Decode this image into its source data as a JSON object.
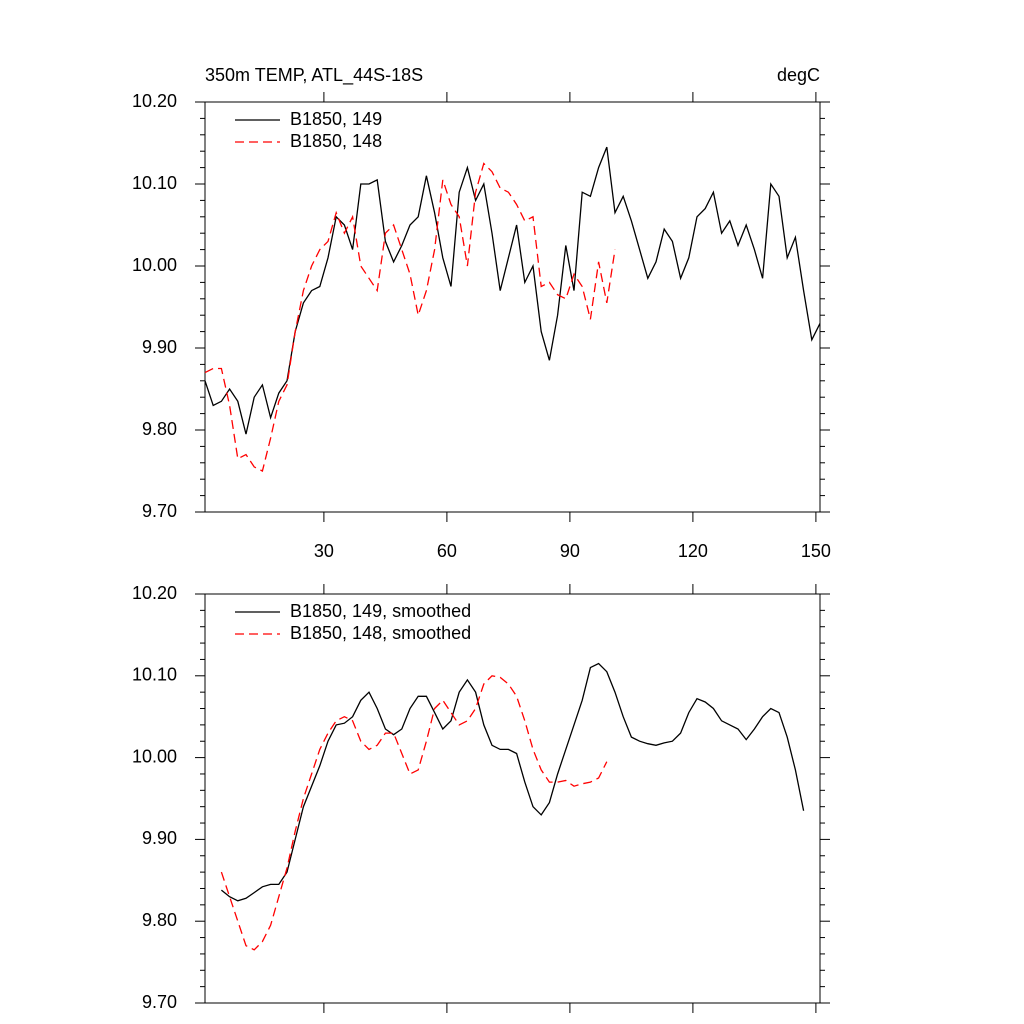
{
  "chart_data": [
    {
      "type": "line",
      "title": "350m TEMP, ATL_44S-18S",
      "unit": "degC",
      "legend": "upper left",
      "x": [
        1,
        3,
        5,
        7,
        9,
        11,
        13,
        15,
        17,
        19,
        21,
        23,
        25,
        27,
        29,
        31,
        33,
        35,
        37,
        39,
        41,
        43,
        45,
        47,
        49,
        51,
        53,
        55,
        57,
        59,
        61,
        63,
        65,
        67,
        69,
        71,
        73,
        75,
        77,
        79,
        81,
        83,
        85,
        87,
        89,
        91,
        93,
        95,
        97,
        99,
        101,
        103,
        105,
        107,
        109,
        111,
        113,
        115,
        117,
        119,
        121,
        123,
        125,
        127,
        129,
        131,
        133,
        135,
        137,
        139,
        141,
        143,
        145,
        147,
        149,
        151
      ],
      "xlim": [
        1,
        151
      ],
      "xticks": [
        30,
        60,
        90,
        120,
        150
      ],
      "ylim": [
        9.7,
        10.2
      ],
      "yticks": [
        {
          "value": 9.7,
          "label": "9.70"
        },
        {
          "value": 9.8,
          "label": "9.80"
        },
        {
          "value": 9.9,
          "label": "9.90"
        },
        {
          "value": 10.0,
          "label": "10.00"
        },
        {
          "value": 10.1,
          "label": "10.10"
        },
        {
          "value": 10.2,
          "label": "10.20"
        }
      ],
      "series": [
        {
          "name": "B1850, 149",
          "color": "#000000",
          "dashed": false,
          "values": [
            9.86,
            9.83,
            9.835,
            9.85,
            9.835,
            9.795,
            9.84,
            9.855,
            9.815,
            9.845,
            9.86,
            9.92,
            9.955,
            9.97,
            9.975,
            10.01,
            10.06,
            10.05,
            10.02,
            10.1,
            10.1,
            10.105,
            10.03,
            10.005,
            10.025,
            10.05,
            10.06,
            10.11,
            10.065,
            10.01,
            9.975,
            10.09,
            10.12,
            10.08,
            10.1,
            10.04,
            9.97,
            10.01,
            10.05,
            9.98,
            10.0,
            9.92,
            9.885,
            9.94,
            10.025,
            9.97,
            10.09,
            10.085,
            10.12,
            10.145,
            10.065,
            10.085,
            10.055,
            10.02,
            9.985,
            10.005,
            10.045,
            10.03,
            9.985,
            10.01,
            10.06,
            10.07,
            10.09,
            10.04,
            10.055,
            10.025,
            10.05,
            10.02,
            9.985,
            10.1,
            10.085,
            10.01,
            10.035,
            9.97,
            9.91,
            9.93
          ]
        },
        {
          "name": "B1850, 148",
          "color": "#ff0000",
          "dashed": true,
          "values": [
            9.87,
            9.875,
            9.875,
            9.83,
            9.765,
            9.77,
            9.755,
            9.75,
            9.79,
            9.835,
            9.855,
            9.92,
            9.97,
            10.0,
            10.02,
            10.03,
            10.065,
            10.04,
            10.06,
            10.0,
            9.985,
            9.97,
            10.04,
            10.05,
            10.02,
            9.99,
            9.94,
            9.97,
            10.02,
            10.105,
            10.075,
            10.06,
            10.0,
            10.09,
            10.125,
            10.115,
            10.095,
            10.09,
            10.075,
            10.055,
            10.06,
            9.975,
            9.98,
            9.965,
            9.96,
            9.99,
            9.975,
            9.935,
            10.005,
            9.955,
            10.02,
            null,
            null,
            null,
            null,
            null,
            null,
            null,
            null,
            null,
            null,
            null,
            null,
            null,
            null,
            null,
            null,
            null,
            null,
            null,
            null,
            null,
            null,
            null,
            null,
            null
          ]
        }
      ]
    },
    {
      "type": "line",
      "legend": "upper left",
      "x": [
        1,
        3,
        5,
        7,
        9,
        11,
        13,
        15,
        17,
        19,
        21,
        23,
        25,
        27,
        29,
        31,
        33,
        35,
        37,
        39,
        41,
        43,
        45,
        47,
        49,
        51,
        53,
        55,
        57,
        59,
        61,
        63,
        65,
        67,
        69,
        71,
        73,
        75,
        77,
        79,
        81,
        83,
        85,
        87,
        89,
        91,
        93,
        95,
        97,
        99,
        101,
        103,
        105,
        107,
        109,
        111,
        113,
        115,
        117,
        119,
        121,
        123,
        125,
        127,
        129,
        131,
        133,
        135,
        137,
        139,
        141,
        143,
        145,
        147,
        149,
        151
      ],
      "xlim": [
        1,
        151
      ],
      "xticks": [
        30,
        60,
        90,
        120,
        150
      ],
      "ylim": [
        9.7,
        10.2
      ],
      "yticks": [
        {
          "value": 9.7,
          "label": "9.70"
        },
        {
          "value": 9.8,
          "label": "9.80"
        },
        {
          "value": 9.9,
          "label": "9.90"
        },
        {
          "value": 10.0,
          "label": "10.00"
        },
        {
          "value": 10.1,
          "label": "10.10"
        },
        {
          "value": 10.2,
          "label": "10.20"
        }
      ],
      "series": [
        {
          "name": "B1850, 149, smoothed",
          "color": "#000000",
          "dashed": false,
          "values": [
            null,
            null,
            9.838,
            9.83,
            9.825,
            9.828,
            9.835,
            9.842,
            9.845,
            9.845,
            9.86,
            9.9,
            9.94,
            9.965,
            9.99,
            10.02,
            10.04,
            10.042,
            10.05,
            10.07,
            10.08,
            10.06,
            10.035,
            10.028,
            10.035,
            10.06,
            10.075,
            10.075,
            10.055,
            10.035,
            10.045,
            10.08,
            10.095,
            10.08,
            10.04,
            10.015,
            10.01,
            10.01,
            10.005,
            9.97,
            9.94,
            9.93,
            9.945,
            9.98,
            10.01,
            10.04,
            10.07,
            10.11,
            10.115,
            10.105,
            10.08,
            10.05,
            10.025,
            10.02,
            10.017,
            10.015,
            10.018,
            10.02,
            10.03,
            10.055,
            10.072,
            10.068,
            10.06,
            10.045,
            10.04,
            10.035,
            10.022,
            10.035,
            10.05,
            10.06,
            10.055,
            10.025,
            9.985,
            9.935,
            null,
            null
          ]
        },
        {
          "name": "B1850, 148, smoothed",
          "color": "#ff0000",
          "dashed": true,
          "values": [
            null,
            null,
            9.86,
            9.83,
            9.8,
            9.77,
            9.765,
            9.775,
            9.795,
            9.83,
            9.865,
            9.91,
            9.95,
            9.98,
            10.01,
            10.03,
            10.045,
            10.05,
            10.045,
            10.02,
            10.01,
            10.015,
            10.03,
            10.03,
            10.005,
            9.98,
            9.985,
            10.02,
            10.06,
            10.07,
            10.055,
            10.04,
            10.045,
            10.06,
            10.09,
            10.1,
            10.098,
            10.09,
            10.075,
            10.045,
            10.01,
            9.985,
            9.97,
            9.97,
            9.972,
            9.965,
            9.968,
            9.97,
            9.975,
            9.995,
            null,
            null,
            null,
            null,
            null,
            null,
            null,
            null,
            null,
            null,
            null,
            null,
            null,
            null,
            null,
            null,
            null,
            null,
            null,
            null,
            null,
            null,
            null,
            null,
            null,
            null
          ]
        }
      ]
    }
  ]
}
